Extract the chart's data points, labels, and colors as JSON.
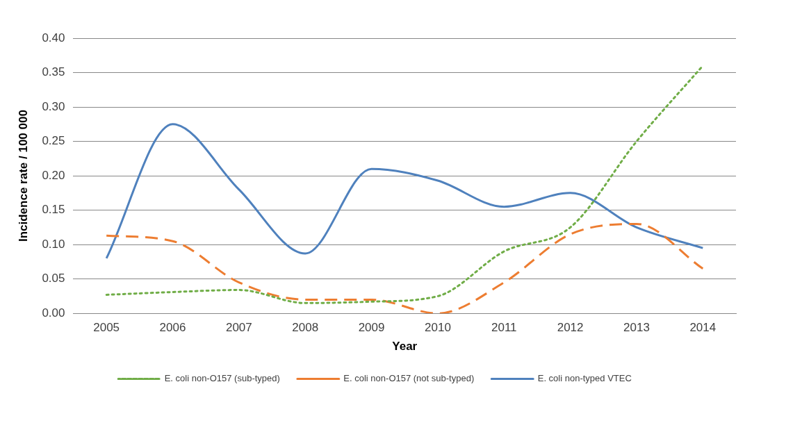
{
  "chart_data": {
    "type": "line",
    "xlabel": "Year",
    "ylabel": "Incidence rate / 100 000",
    "categories": [
      "2005",
      "2006",
      "2007",
      "2008",
      "2009",
      "2010",
      "2011",
      "2012",
      "2013",
      "2014"
    ],
    "series": [
      {
        "name": "E. coli non-O157 (sub-typed)",
        "color": "#70ad47",
        "line_style": "dotted",
        "values": [
          0.027,
          0.031,
          0.034,
          0.015,
          0.017,
          0.025,
          0.09,
          0.125,
          0.25,
          0.36
        ]
      },
      {
        "name": "E. coli non-O157 (not sub-typed)",
        "color": "#ed7d31",
        "line_style": "dashed",
        "values": [
          0.113,
          0.105,
          0.045,
          0.02,
          0.02,
          0.0,
          0.045,
          0.115,
          0.13,
          0.065
        ]
      },
      {
        "name": "E. coli non-typed VTEC",
        "color": "#4f81bd",
        "line_style": "solid",
        "values": [
          0.08,
          0.275,
          0.18,
          0.087,
          0.21,
          0.193,
          0.155,
          0.175,
          0.125,
          0.095
        ]
      }
    ],
    "ylim": [
      0,
      0.4
    ],
    "yticks": [
      {
        "value": 0,
        "label": "0.00"
      },
      {
        "value": 0.05,
        "label": "0.05"
      },
      {
        "value": 0.1,
        "label": "0.10"
      },
      {
        "value": 0.15,
        "label": "0.15"
      },
      {
        "value": 0.2,
        "label": "0.20"
      },
      {
        "value": 0.25,
        "label": "0.25"
      },
      {
        "value": 0.3,
        "label": "0.30"
      },
      {
        "value": 0.35,
        "label": "0.35"
      },
      {
        "value": 0.4,
        "label": "0.40"
      }
    ],
    "grid": "y",
    "legend": "bottom",
    "marker": "none"
  }
}
